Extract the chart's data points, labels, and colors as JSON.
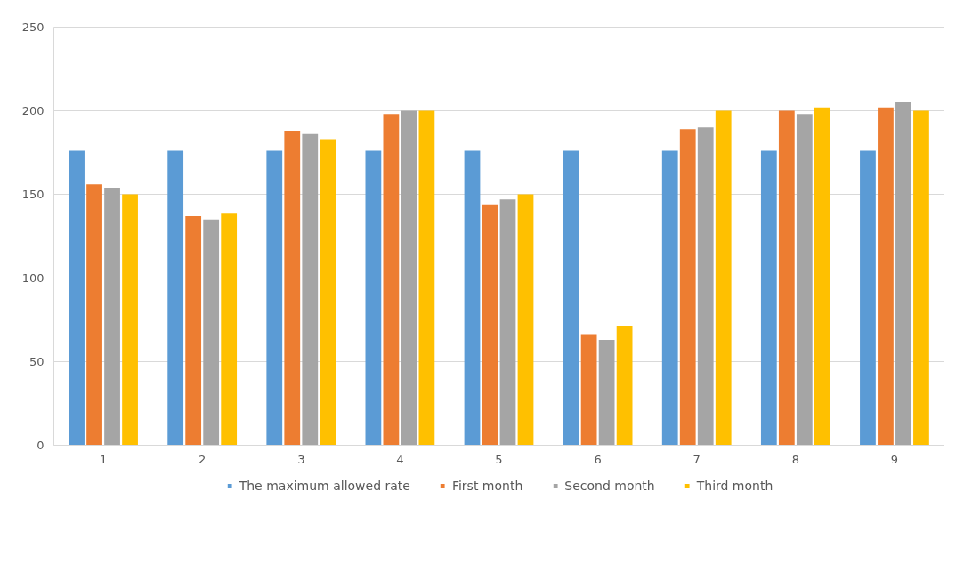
{
  "chart_data": {
    "type": "bar",
    "categories": [
      "1",
      "2",
      "3",
      "4",
      "5",
      "6",
      "7",
      "8",
      "9"
    ],
    "series": [
      {
        "name": "The maximum allowed rate",
        "color": "#5b9bd5",
        "values": [
          176,
          176,
          176,
          176,
          176,
          176,
          176,
          176,
          176
        ]
      },
      {
        "name": "First month",
        "color": "#ed7d31",
        "values": [
          156,
          137,
          188,
          198,
          144,
          66,
          189,
          200,
          202
        ]
      },
      {
        "name": "Second month",
        "color": "#a5a5a5",
        "values": [
          154,
          135,
          186,
          200,
          147,
          63,
          190,
          198,
          205
        ]
      },
      {
        "name": "Third month",
        "color": "#ffc000",
        "values": [
          150,
          139,
          183,
          200,
          150,
          71,
          200,
          202,
          200
        ]
      }
    ],
    "ylim": [
      0,
      250
    ],
    "yticks": [
      0,
      50,
      100,
      150,
      200,
      250
    ],
    "grid": "y",
    "legend": "bottom"
  }
}
